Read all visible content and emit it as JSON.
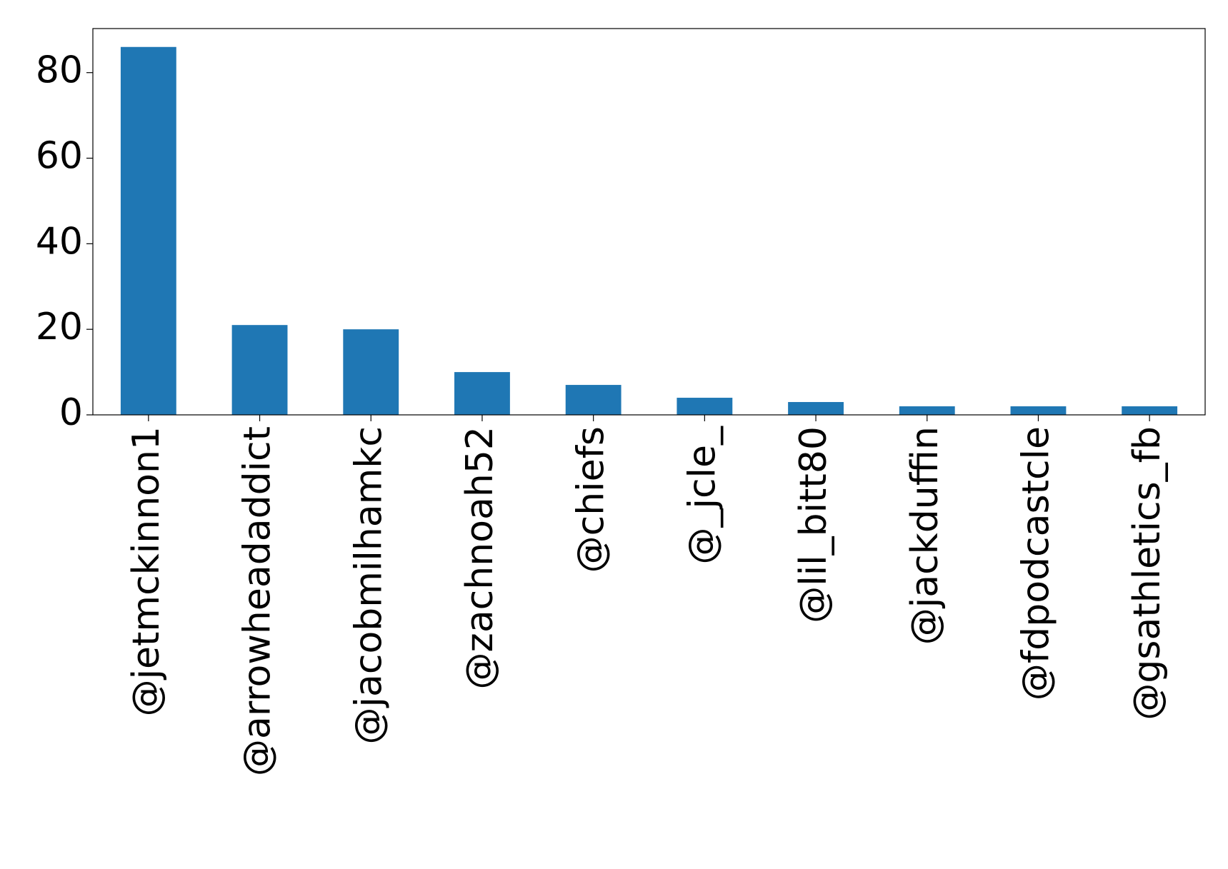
{
  "chart_data": {
    "type": "bar",
    "categories": [
      "@jetmckinnon1",
      "@arrowheadaddict",
      "@jacobmilhamkc",
      "@zachnoah52",
      "@chiefs",
      "@_jcle_",
      "@lil_bitt80",
      "@jackduffin",
      "@fdpodcastcle",
      "@gsathletics_fb"
    ],
    "values": [
      86,
      21,
      20,
      10,
      7,
      4,
      3,
      2,
      2,
      2
    ],
    "color": "#1f77b4",
    "ylim": [
      0,
      90.3
    ],
    "yticks": [
      0,
      20,
      40,
      60,
      80
    ],
    "grid": false
  }
}
